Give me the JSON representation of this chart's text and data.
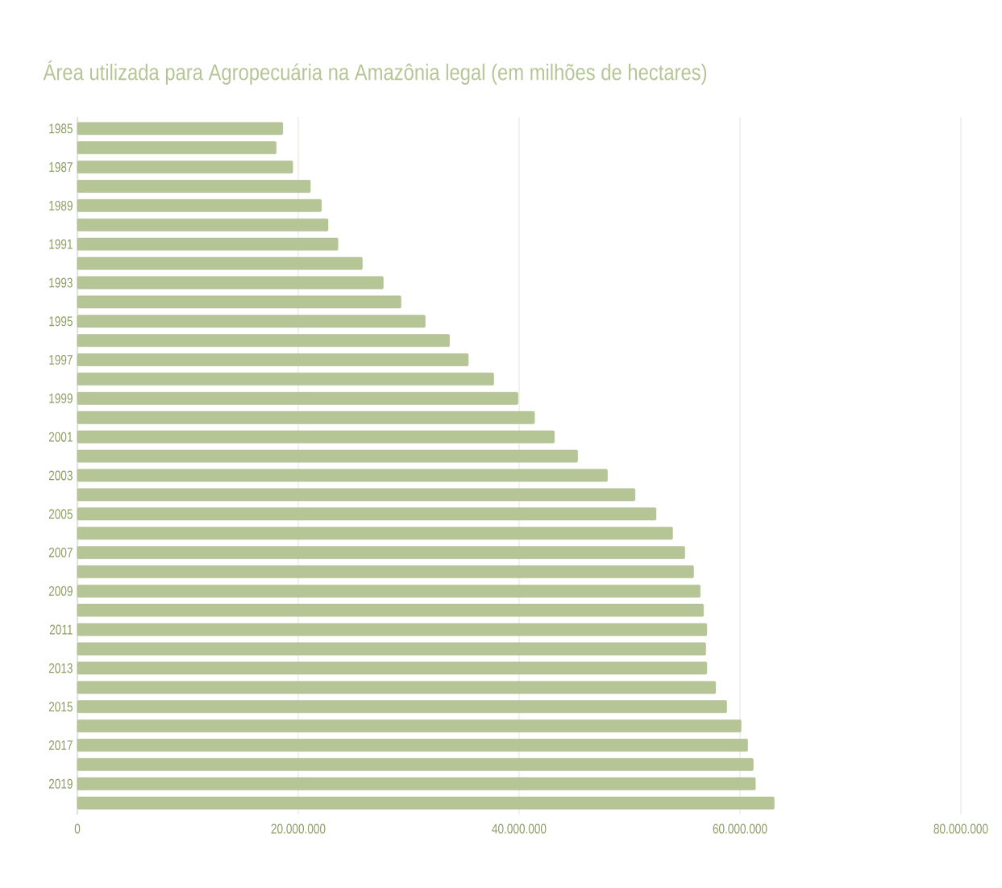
{
  "chart_data": {
    "type": "bar",
    "orientation": "horizontal",
    "title": "Área utilizada para Agropecuária na Amazônia legal (em milhões de hectares)",
    "categories": [
      "1985",
      null,
      "1987",
      null,
      "1989",
      null,
      "1991",
      null,
      "1993",
      null,
      "1995",
      null,
      "1997",
      null,
      "1999",
      null,
      "2001",
      null,
      "2003",
      null,
      "2005",
      null,
      "2007",
      null,
      "2009",
      null,
      "2011",
      null,
      "2013",
      null,
      "2015",
      null,
      "2017",
      null,
      "2019",
      null
    ],
    "values": [
      18600000,
      18000000,
      19500000,
      21100000,
      22100000,
      22700000,
      23600000,
      25800000,
      27700000,
      29300000,
      31500000,
      33700000,
      35400000,
      37700000,
      39900000,
      41400000,
      43200000,
      45300000,
      48000000,
      50500000,
      52400000,
      53900000,
      55000000,
      55800000,
      56400000,
      56700000,
      57000000,
      56900000,
      57000000,
      57800000,
      58800000,
      60100000,
      60700000,
      61200000,
      61400000,
      63100000
    ],
    "color": "#b6c596",
    "xlim": [
      0,
      80000000
    ],
    "xticks": [
      0,
      {
        "value": 20000000,
        "label": "20.000.000"
      },
      {
        "value": 40000000,
        "label": "40.000.000"
      },
      {
        "value": 60000000,
        "label": "60.000.000"
      },
      {
        "value": 80000000,
        "label": "80.000.000"
      }
    ],
    "grid": "x"
  }
}
